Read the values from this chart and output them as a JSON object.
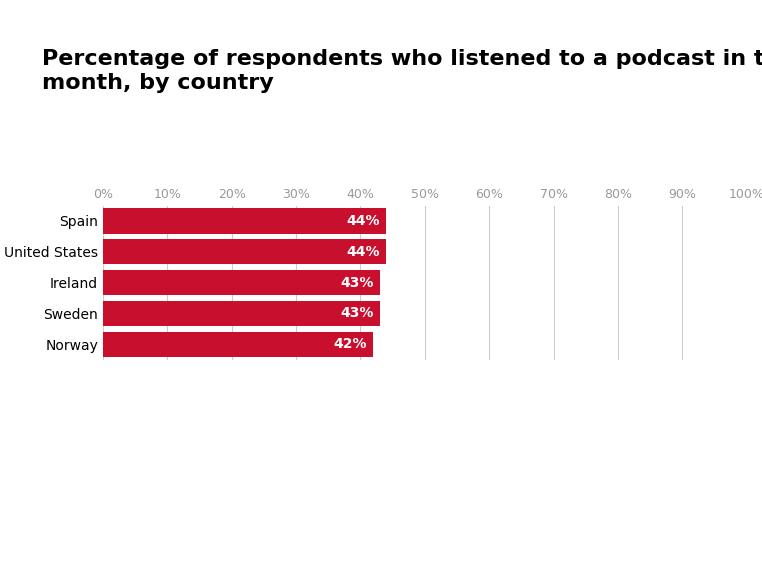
{
  "title_line1": "Percentage of respondents who listened to a podcast in the last",
  "title_line2": "month, by country",
  "categories": [
    "Spain",
    "United States",
    "Ireland",
    "Sweden",
    "Norway"
  ],
  "values": [
    44,
    44,
    43,
    43,
    42
  ],
  "labels": [
    "44%",
    "44%",
    "43%",
    "43%",
    "42%"
  ],
  "bar_color": "#C8102E",
  "label_color": "#ffffff",
  "title_color": "#000000",
  "background_color": "#ffffff",
  "tick_color": "#999999",
  "grid_color": "#cccccc",
  "xlabel_ticks": [
    0,
    10,
    20,
    30,
    40,
    50,
    60,
    70,
    80,
    90,
    100
  ],
  "xlabel_labels": [
    "0%",
    "10%",
    "20%",
    "30%",
    "40%",
    "50%",
    "60%",
    "70%",
    "80%",
    "90%",
    "100%"
  ],
  "xlim": [
    0,
    100
  ],
  "title_fontsize": 16,
  "label_fontsize": 10,
  "tick_fontsize": 9,
  "ytick_fontsize": 10,
  "bar_height": 0.82
}
